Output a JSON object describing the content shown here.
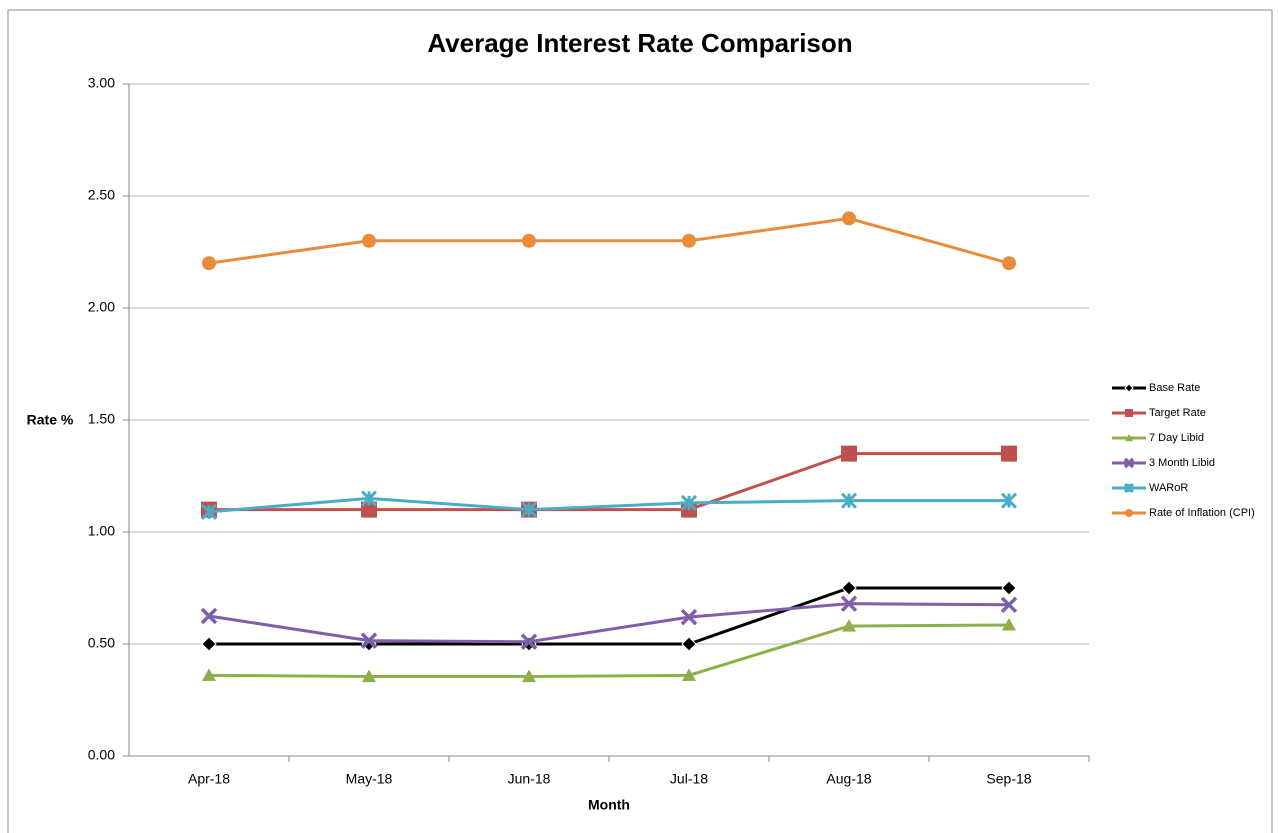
{
  "chart_data": {
    "type": "line",
    "title": "Average Interest Rate Comparison",
    "x_label": "Month",
    "y_label": "Rate %",
    "categories": [
      "Apr-18",
      "May-18",
      "Jun-18",
      "Jul-18",
      "Aug-18",
      "Sep-18"
    ],
    "series": [
      {
        "name": "Base Rate",
        "color": "#000000",
        "marker": "diamond",
        "values": [
          0.5,
          0.5,
          0.5,
          0.5,
          0.75,
          0.75
        ]
      },
      {
        "name": "Target Rate",
        "color": "#c0504d",
        "marker": "square",
        "values": [
          1.1,
          1.1,
          1.1,
          1.1,
          1.35,
          1.35
        ]
      },
      {
        "name": "7 Day Libid",
        "color": "#8db04a",
        "marker": "triangle",
        "values": [
          0.36,
          0.355,
          0.355,
          0.36,
          0.58,
          0.585
        ]
      },
      {
        "name": "3 Month Libid",
        "color": "#7f60a8",
        "marker": "x",
        "values": [
          0.625,
          0.515,
          0.51,
          0.62,
          0.68,
          0.675
        ]
      },
      {
        "name": "WARoR",
        "color": "#4aacc6",
        "marker": "star",
        "values": [
          1.09,
          1.15,
          1.1,
          1.13,
          1.14,
          1.14
        ]
      },
      {
        "name": "Rate of Inflation (CPI)",
        "color": "#e98b3a",
        "marker": "circle",
        "values": [
          2.2,
          2.3,
          2.3,
          2.3,
          2.4,
          2.2
        ]
      }
    ],
    "ylim": [
      0,
      3
    ],
    "yticks": [
      {
        "value": 0,
        "label": "0.00"
      },
      {
        "value": 0.5,
        "label": "0.50"
      },
      {
        "value": 1,
        "label": "1.00"
      },
      {
        "value": 1.5,
        "label": "1.50"
      },
      {
        "value": 2,
        "label": "2.00"
      },
      {
        "value": 2.5,
        "label": "2.50"
      },
      {
        "value": 3,
        "label": "3.00"
      }
    ],
    "grid": true,
    "legend": "right"
  }
}
